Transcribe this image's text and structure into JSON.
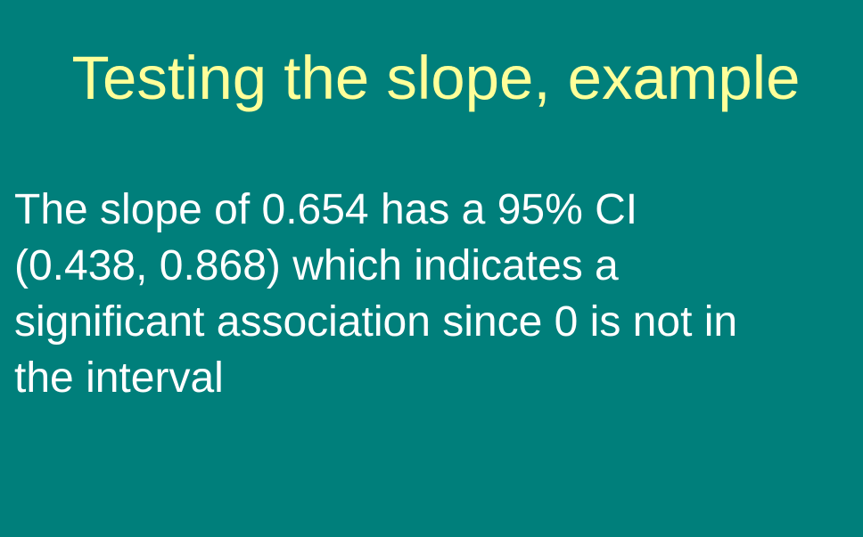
{
  "slide": {
    "title": "Testing the slope, example",
    "body_lines": [
      "The slope of 0.654 has a 95% CI",
      "(0.438, 0.868) which indicates a",
      "significant association since 0 is not in",
      "the interval"
    ]
  },
  "colors": {
    "background": "#007f7b",
    "title": "#ffff99",
    "body": "#ffffff"
  }
}
